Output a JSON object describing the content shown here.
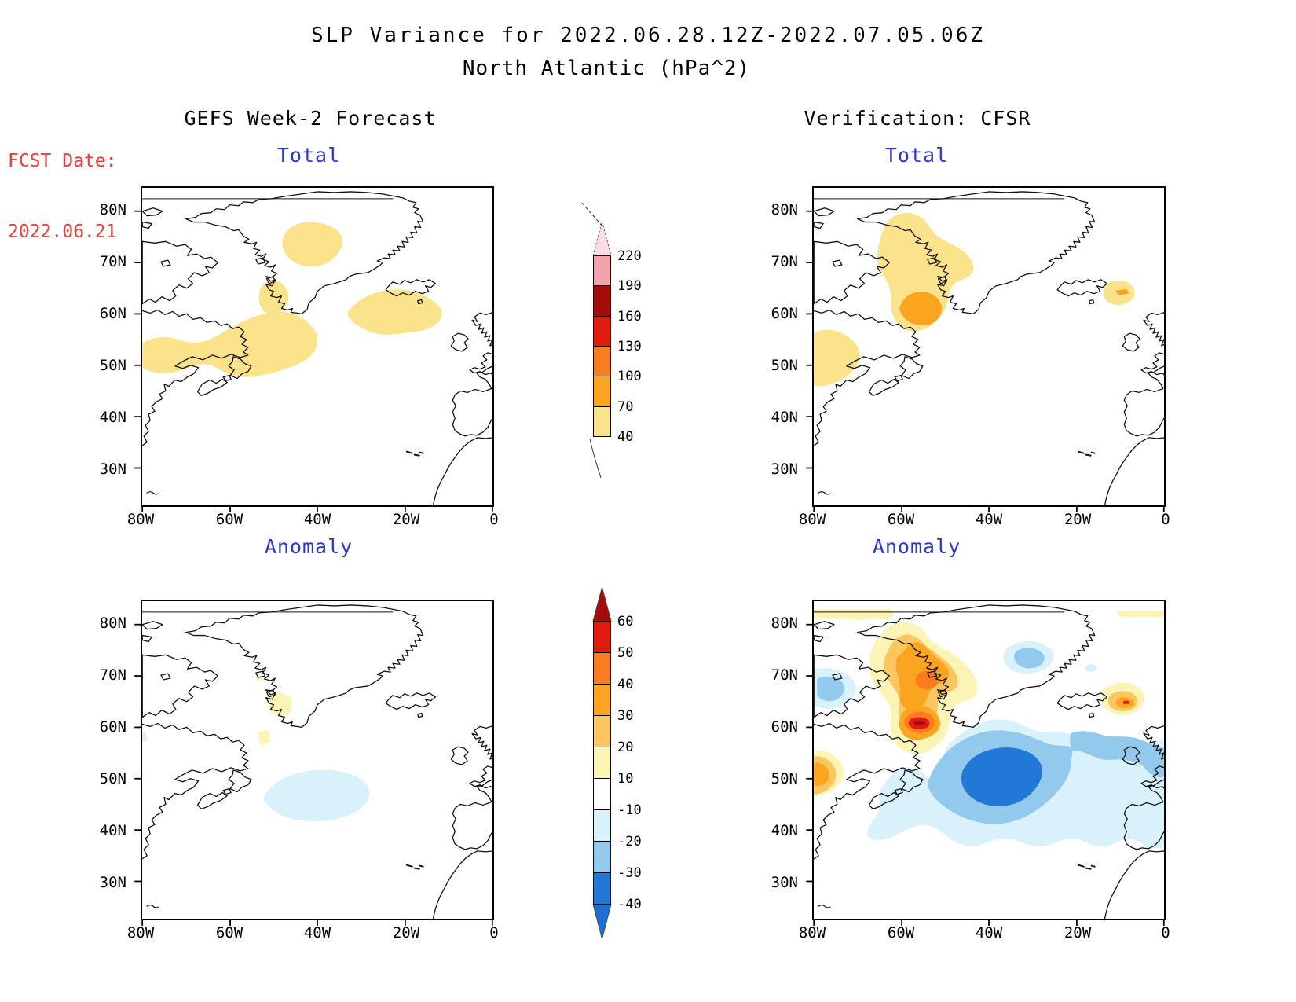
{
  "title": {
    "line1": "SLP Variance for 2022.06.28.12Z-2022.07.05.06Z",
    "line2": "North Atlantic (hPa^2)"
  },
  "fcst": {
    "label": "FCST Date:",
    "date": "2022.06.21",
    "color": "#f23c3c"
  },
  "columns": {
    "left": "GEFS Week-2 Forecast",
    "right": "Verification: CFSR"
  },
  "panels": [
    {
      "id": "gefs-total",
      "column": "GEFS Week-2 Forecast",
      "label": "Total"
    },
    {
      "id": "cfsr-total",
      "column": "Verification: CFSR",
      "label": "Total"
    },
    {
      "id": "gefs-anomaly",
      "column": "GEFS Week-2 Forecast",
      "label": "Anomaly"
    },
    {
      "id": "cfsr-anomaly",
      "column": "Verification: CFSR",
      "label": "Anomaly"
    }
  ],
  "axes": {
    "lat_ticks": [
      "80N",
      "70N",
      "60N",
      "50N",
      "40N",
      "30N"
    ],
    "lon_ticks": [
      "80W",
      "60W",
      "40W",
      "20W",
      "0"
    ]
  },
  "colorbars": {
    "total": {
      "ticks": [
        "220",
        "190",
        "160",
        "130",
        "100",
        "70",
        "40"
      ],
      "segment_colors_top_to_bottom": [
        "#F2A3AE",
        "#A50D0C",
        "#DE1D10",
        "#F97D20",
        "#FBA41F",
        "#FAE38B"
      ],
      "above_top_color": "#FBDCE3"
    },
    "anomaly": {
      "ticks": [
        "60",
        "50",
        "40",
        "30",
        "20",
        "10",
        "-10",
        "-20",
        "-30",
        "-40"
      ],
      "segment_colors_top_to_bottom": [
        "#DE1D10",
        "#F97D20",
        "#FBA41F",
        "#FBC55F",
        "#FCF4B5",
        "#FFFFFF",
        "#D8F1FA",
        "#92C9EC",
        "#2278D7"
      ],
      "above_top_color": "#A50D0C",
      "below_bottom_color": "#1E6FD0"
    }
  },
  "accent_colors": {
    "panel_label_blue": "#2936e0",
    "fcst_red": "#f23c3c"
  },
  "chart_data": [
    {
      "type": "heatmap",
      "panel": "GEFS Week-2 Forecast - Total",
      "units": "hPa^2",
      "lon_range": [
        "80W",
        "0"
      ],
      "lat_range": [
        "30N",
        "80N"
      ],
      "contour_levels": [
        40,
        70,
        100,
        130,
        160,
        190,
        220
      ],
      "shaded_regions": [
        {
          "region": "Labrador Sea / Newfoundland (80W-40W, 50N-62N)",
          "value": "40-70"
        },
        {
          "region": "Central Greenland (50W-32W, 70N-77N)",
          "value": "40-70"
        },
        {
          "region": "Davis Strait SW of Greenland (53W-46W, 58N-66N)",
          "value": "40-70"
        },
        {
          "region": "SW of Iceland (33W-12W, 56N-64N)",
          "value": "40-70"
        }
      ]
    },
    {
      "type": "heatmap",
      "panel": "Verification: CFSR - Total",
      "units": "hPa^2",
      "lon_range": [
        "80W",
        "0"
      ],
      "lat_range": [
        "30N",
        "80N"
      ],
      "contour_levels": [
        40,
        70,
        100,
        130,
        160,
        190,
        220
      ],
      "shaded_regions": [
        {
          "region": "Baffin Island / Davis Strait (66W-45W, 54N-76N)",
          "value": "40-70"
        },
        {
          "region": "Davis Strait core (62W-52W, 59N-64N)",
          "value": "70-100"
        },
        {
          "region": "Gulf of St. Lawrence at west edge (80W-70W, 47N-58N)",
          "value": "40-70"
        },
        {
          "region": "North of Iceland (12W-6W, 63N-67N)",
          "value": "40-70 with small 70-100 core"
        }
      ]
    },
    {
      "type": "heatmap",
      "panel": "GEFS Week-2 Forecast - Anomaly",
      "units": "hPa^2",
      "lon_range": [
        "80W",
        "0"
      ],
      "lat_range": [
        "30N",
        "80N"
      ],
      "contour_levels": [
        -40,
        -30,
        -20,
        -10,
        10,
        20,
        30,
        40,
        50,
        60
      ],
      "shaded_regions": [
        {
          "region": "West Greenland coast (52W-46W, 63N-67N)",
          "value": "+10 to +20"
        },
        {
          "region": "SW of Greenland tip (54W-49W, 57N-60N)",
          "value": "+10 to +20"
        },
        {
          "region": "Central North Atlantic (48W-28W, 43N-52N)",
          "value": "-10 to -20"
        }
      ]
    },
    {
      "type": "heatmap",
      "panel": "Verification: CFSR - Anomaly",
      "units": "hPa^2",
      "lon_range": [
        "80W",
        "0"
      ],
      "lat_range": [
        "30N",
        "80N"
      ],
      "contour_levels": [
        -40,
        -30,
        -20,
        -10,
        10,
        20,
        30,
        40,
        50,
        60
      ],
      "shaded_regions": [
        {
          "region": "Baffin Island / Davis Strait (64W-48W, 57N-77N)",
          "value": "+10 to +60, small core >+60 near 62N 57W"
        },
        {
          "region": "NE of Iceland (10W-4W, 63N-67N)",
          "value": "+10 to +50"
        },
        {
          "region": "West edge near 52N (80W-74W)",
          "value": "+10 to +30"
        },
        {
          "region": "Band along top edge ~83N",
          "value": "+10 to +20"
        },
        {
          "region": "Central/East North Atlantic (52W-0, 35N-62N)",
          "value": "-10 to -40, core -30 to -40 near 50N 38W"
        },
        {
          "region": "Greenland Sea NW of Iceland (37W-25W, 69N-75N)",
          "value": "-10 to -30"
        },
        {
          "region": "NW Baffin Bay at west edge (80W-70W, 63N-72N)",
          "value": "-10 to -30"
        },
        {
          "region": "British Isles (10W-0, 50N-59N)",
          "value": "-10 to -30"
        }
      ]
    }
  ]
}
